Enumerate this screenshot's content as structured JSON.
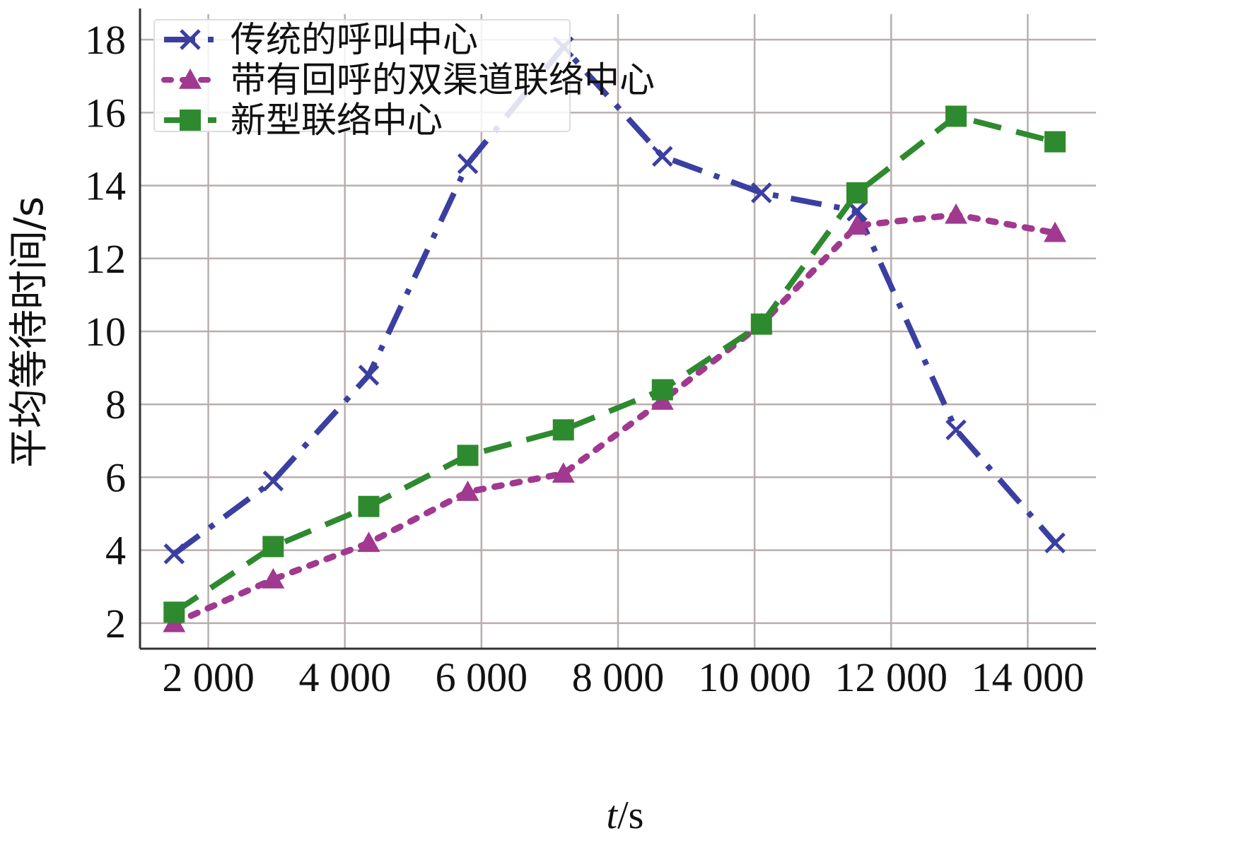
{
  "chart_data": {
    "type": "line",
    "xlabel_italic": "t",
    "xlabel_unit": "/s",
    "ylabel": "平均等待时间/s",
    "xlim": [
      1000,
      15000
    ],
    "ylim": [
      1.3,
      18.7
    ],
    "x_ticks": [
      2000,
      4000,
      6000,
      8000,
      10000,
      12000,
      14000
    ],
    "x_tick_labels": [
      "2 000",
      "4 000",
      "6 000",
      "8 000",
      "10 000",
      "12 000",
      "14 000"
    ],
    "y_ticks": [
      2,
      4,
      6,
      8,
      10,
      12,
      14,
      16,
      18
    ],
    "y_tick_labels": [
      "2",
      "4",
      "6",
      "8",
      "10",
      "12",
      "14",
      "16",
      "18"
    ],
    "grid": true,
    "legend_position": "top-left",
    "series": [
      {
        "name": "传统的呼叫中心",
        "color": "#3b3fa0",
        "marker": "x",
        "dash": "dash-dot",
        "x": [
          1500,
          2950,
          4350,
          5800,
          7200,
          8650,
          10100,
          11500,
          12950,
          14400
        ],
        "y": [
          3.9,
          5.9,
          8.8,
          14.6,
          17.8,
          14.8,
          13.8,
          13.3,
          7.3,
          4.2
        ]
      },
      {
        "name": "带有回呼的双渠道联络中心",
        "color": "#a0398f",
        "marker": "triangle",
        "dash": "dotted",
        "x": [
          1500,
          2950,
          4350,
          5800,
          7200,
          8650,
          10100,
          11500,
          12950,
          14400
        ],
        "y": [
          2.0,
          3.2,
          4.2,
          5.6,
          6.1,
          8.1,
          10.2,
          12.9,
          13.2,
          12.7
        ]
      },
      {
        "name": "新型联络中心",
        "color": "#2e8a2e",
        "marker": "square",
        "dash": "dashed",
        "x": [
          1500,
          2950,
          4350,
          5800,
          7200,
          8650,
          10100,
          11500,
          12950,
          14400
        ],
        "y": [
          2.3,
          4.1,
          5.2,
          6.6,
          7.3,
          8.4,
          10.2,
          13.8,
          15.9,
          15.2
        ]
      }
    ]
  }
}
